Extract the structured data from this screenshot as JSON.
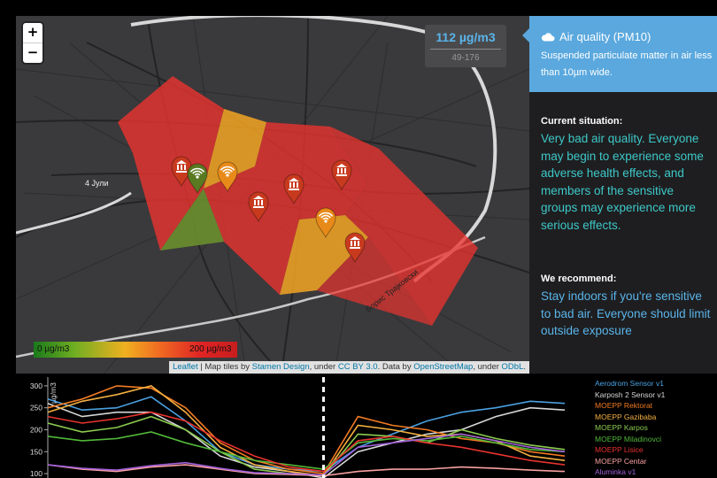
{
  "map": {
    "zoom_in": "+",
    "zoom_out": "−",
    "value_box": {
      "value": "112 µg/m3",
      "range": "49-176"
    },
    "scale": {
      "min_label": "0 µg/m3",
      "max_label": "200 µg/m3"
    },
    "road_labels": [
      "4 Јули",
      "Борис Трајковски"
    ],
    "attribution": {
      "leaflet": "Leaflet",
      "t1": " | Map tiles by ",
      "stamen": "Stamen Design",
      "t2": ", under ",
      "cc": "CC BY 3.0",
      "t3": ". Data by ",
      "osm": "OpenStreetMap",
      "t4": ", under ",
      "odbl": "ODbL",
      "t5": "."
    },
    "colors": {
      "red": "#e8332e",
      "orange": "#f5a623",
      "green": "#6a8f2c",
      "pin_red": "#c83a1e",
      "pin_orange": "#e88a1a",
      "pin_green": "#5a7a22"
    },
    "markers": [
      {
        "icon": "museum-icon",
        "color": "pin_red"
      },
      {
        "icon": "wifi-icon",
        "color": "pin_green"
      },
      {
        "icon": "wifi-icon",
        "color": "pin_orange"
      },
      {
        "icon": "museum-icon",
        "color": "pin_red"
      },
      {
        "icon": "museum-icon",
        "color": "pin_red"
      },
      {
        "icon": "museum-icon",
        "color": "pin_red"
      },
      {
        "icon": "wifi-icon",
        "color": "pin_orange"
      },
      {
        "icon": "museum-icon",
        "color": "pin_red"
      }
    ]
  },
  "panel": {
    "title": "Air quality (PM10)",
    "description": "Suspended particulate matter in air less than 10µm wide.",
    "situation_label": "Current situation:",
    "situation_text": "Very bad air quality. Everyone may begin to experience some adverse health effects, and members of the sensitive groups may experience more serious effects.",
    "recommend_label": "We recommend:",
    "recommend_text": "Stay indoors if you're sensitive to bad air. Everyone should limit outside exposure",
    "colors": {
      "header": "#5aa8de",
      "situation": "#3ec8c8",
      "recommend": "#5ab4ea"
    }
  },
  "chart": {
    "legend": [
      {
        "name": "Aerodrom Sensor v1",
        "color": "#4aa0e0"
      },
      {
        "name": "Karposh 2 Sensor v1",
        "color": "#d8d8d8"
      },
      {
        "name": "MOEPP Rektorat",
        "color": "#f07a22"
      },
      {
        "name": "MOEPP Gazibaba",
        "color": "#f5b040"
      },
      {
        "name": "MOEPP Karpos",
        "color": "#8ccc50"
      },
      {
        "name": "MOEPP Miladinovci",
        "color": "#52b83a"
      },
      {
        "name": "MOEPP Lisice",
        "color": "#e8332e"
      },
      {
        "name": "MOEPP Centar",
        "color": "#f8a0a0"
      },
      {
        "name": "Aluminka v1",
        "color": "#a060d8"
      }
    ]
  },
  "chart_data": {
    "type": "line",
    "ylabel": "µg/m3",
    "yticks": [
      100,
      150,
      200,
      250,
      300
    ],
    "ylim": [
      90,
      320
    ],
    "x": [
      0,
      1,
      2,
      3,
      4,
      5,
      6,
      7,
      8,
      9,
      10,
      11,
      12,
      13,
      14,
      15
    ],
    "now_index": 8,
    "series": [
      {
        "name": "Aerodrom Sensor v1",
        "values": [
          270,
          245,
          250,
          275,
          220,
          150,
          120,
          110,
          105,
          160,
          190,
          220,
          240,
          250,
          265,
          260
        ]
      },
      {
        "name": "Karposh 2 Sensor v1",
        "values": [
          260,
          230,
          240,
          240,
          200,
          140,
          115,
          105,
          90,
          150,
          170,
          190,
          200,
          230,
          250,
          245
        ]
      },
      {
        "name": "MOEPP Rektorat",
        "values": [
          250,
          270,
          300,
          295,
          250,
          170,
          130,
          110,
          100,
          230,
          210,
          200,
          180,
          170,
          150,
          140
        ]
      },
      {
        "name": "MOEPP Gazibaba",
        "values": [
          240,
          265,
          280,
          300,
          240,
          160,
          120,
          105,
          95,
          210,
          200,
          185,
          190,
          175,
          140,
          130
        ]
      },
      {
        "name": "MOEPP Karpos",
        "values": [
          215,
          195,
          205,
          230,
          200,
          150,
          110,
          100,
          95,
          190,
          185,
          170,
          200,
          180,
          165,
          155
        ]
      },
      {
        "name": "MOEPP Miladinovci",
        "values": [
          185,
          175,
          180,
          195,
          170,
          150,
          130,
          120,
          110,
          170,
          180,
          175,
          185,
          170,
          155,
          150
        ]
      },
      {
        "name": "MOEPP Lisice",
        "values": [
          230,
          215,
          225,
          240,
          220,
          175,
          140,
          115,
          105,
          175,
          185,
          170,
          160,
          145,
          130,
          120
        ]
      },
      {
        "name": "MOEPP Centar",
        "values": [
          120,
          110,
          105,
          115,
          120,
          110,
          100,
          98,
          95,
          105,
          110,
          110,
          115,
          112,
          108,
          105
        ]
      },
      {
        "name": "Aluminka v1",
        "values": [
          120,
          112,
          108,
          118,
          125,
          112,
          102,
          100,
          97,
          160,
          170,
          180,
          190,
          175,
          160,
          150
        ]
      }
    ]
  }
}
